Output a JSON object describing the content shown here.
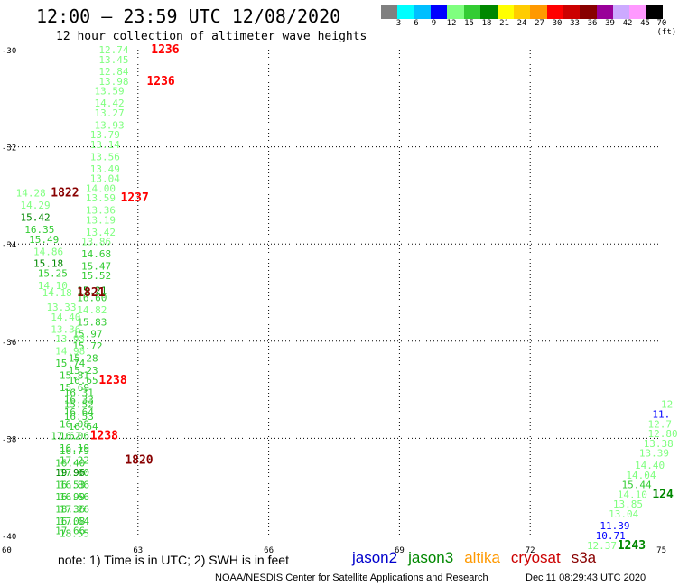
{
  "header": {
    "title": "12:00 – 23:59 UTC 12/08/2020",
    "subtitle": "12 hour collection of altimeter wave heights"
  },
  "colorbar": {
    "colors": [
      "#808080",
      "#00ffff",
      "#00bfff",
      "#0000ff",
      "#7fff7f",
      "#33cc33",
      "#008800",
      "#ffff00",
      "#ffcc00",
      "#ff9900",
      "#ff0000",
      "#cc0000",
      "#880000",
      "#990099",
      "#ccaaff",
      "#ff99ff",
      "#000000"
    ],
    "labels": [
      "3",
      "6",
      "9",
      "12",
      "15",
      "18",
      "21",
      "24",
      "27",
      "30",
      "33",
      "36",
      "39",
      "42",
      "45",
      "70 (ft)"
    ]
  },
  "axes": {
    "lat_labels": [
      "-30",
      "-32",
      "-34",
      "-36",
      "-38",
      "-40"
    ],
    "lat_values": [
      -30,
      -32,
      -34,
      -36,
      -38,
      -40
    ],
    "lon_labels": [
      "60",
      "63",
      "66",
      "69",
      "72",
      "75"
    ],
    "lon_values": [
      60,
      63,
      66,
      69,
      72,
      75
    ]
  },
  "tracks": [
    {
      "name": "track-1236",
      "items": [
        {
          "lon": 62.1,
          "lat": -30.0,
          "text": "12.74",
          "color": "#7fff7f"
        },
        {
          "lon": 63.3,
          "lat": -30.0,
          "text": "1236",
          "color": "#ff0000",
          "bold": true
        },
        {
          "lon": 62.1,
          "lat": -30.2,
          "text": "13.45",
          "color": "#7fff7f"
        },
        {
          "lon": 62.1,
          "lat": -30.45,
          "text": "12.84",
          "color": "#7fff7f"
        },
        {
          "lon": 62.1,
          "lat": -30.65,
          "text": "13.98",
          "color": "#7fff7f"
        },
        {
          "lon": 63.2,
          "lat": -30.65,
          "text": "1236",
          "color": "#ff0000",
          "bold": true
        },
        {
          "lon": 62.0,
          "lat": -30.85,
          "text": "13.59",
          "color": "#7fff7f"
        },
        {
          "lon": 62.0,
          "lat": -31.1,
          "text": "14.42",
          "color": "#7fff7f"
        },
        {
          "lon": 62.0,
          "lat": -31.3,
          "text": "13.27",
          "color": "#7fff7f"
        },
        {
          "lon": 62.0,
          "lat": -31.55,
          "text": "13.93",
          "color": "#7fff7f"
        },
        {
          "lon": 61.9,
          "lat": -31.75,
          "text": "13.79",
          "color": "#7fff7f"
        },
        {
          "lon": 61.9,
          "lat": -31.95,
          "text": "13.14",
          "color": "#7fff7f"
        },
        {
          "lon": 61.9,
          "lat": -32.2,
          "text": "13.56",
          "color": "#7fff7f"
        },
        {
          "lon": 61.9,
          "lat": -32.45,
          "text": "13.49",
          "color": "#7fff7f"
        },
        {
          "lon": 61.9,
          "lat": -32.65,
          "text": "13.04",
          "color": "#7fff7f"
        },
        {
          "lon": 61.8,
          "lat": -32.85,
          "text": "14.00",
          "color": "#7fff7f"
        }
      ]
    },
    {
      "name": "track-1237",
      "items": [
        {
          "lon": 61.8,
          "lat": -33.05,
          "text": "13.59",
          "color": "#7fff7f"
        },
        {
          "lon": 62.6,
          "lat": -33.05,
          "text": "1237",
          "color": "#ff0000",
          "bold": true
        },
        {
          "lon": 61.8,
          "lat": -33.3,
          "text": "13.36",
          "color": "#7fff7f"
        },
        {
          "lon": 61.8,
          "lat": -33.5,
          "text": "13.19",
          "color": "#7fff7f"
        },
        {
          "lon": 61.8,
          "lat": -33.75,
          "text": "13.42",
          "color": "#7fff7f"
        },
        {
          "lon": 61.7,
          "lat": -33.95,
          "text": "13.86",
          "color": "#7fff7f"
        },
        {
          "lon": 61.7,
          "lat": -34.2,
          "text": "14.68",
          "color": "#33cc33"
        },
        {
          "lon": 61.7,
          "lat": -34.45,
          "text": "15.47",
          "color": "#33cc33"
        },
        {
          "lon": 61.7,
          "lat": -34.65,
          "text": "15.52",
          "color": "#33cc33"
        },
        {
          "lon": 61.6,
          "lat": -34.95,
          "text": "15.21",
          "color": "#008800"
        },
        {
          "lon": 61.6,
          "lat": -35.1,
          "text": "16.60",
          "color": "#33cc33"
        },
        {
          "lon": 61.6,
          "lat": -35.35,
          "text": "14.82",
          "color": "#7fff7f"
        },
        {
          "lon": 61.6,
          "lat": -35.6,
          "text": "15.83",
          "color": "#33cc33"
        },
        {
          "lon": 61.5,
          "lat": -35.85,
          "text": "15.97",
          "color": "#33cc33"
        },
        {
          "lon": 61.5,
          "lat": -36.1,
          "text": "15.72",
          "color": "#33cc33"
        },
        {
          "lon": 61.4,
          "lat": -36.35,
          "text": "15.28",
          "color": "#33cc33"
        },
        {
          "lon": 61.4,
          "lat": -36.6,
          "text": "15.23",
          "color": "#33cc33"
        },
        {
          "lon": 61.4,
          "lat": -36.8,
          "text": "16.65",
          "color": "#33cc33"
        },
        {
          "lon": 62.1,
          "lat": -36.8,
          "text": "1238",
          "color": "#ff0000",
          "bold": true
        },
        {
          "lon": 61.3,
          "lat": -37.05,
          "text": "16.31",
          "color": "#33cc33"
        },
        {
          "lon": 61.3,
          "lat": -37.3,
          "text": "15.52",
          "color": "#33cc33"
        },
        {
          "lon": 61.3,
          "lat": -37.55,
          "text": "16.53",
          "color": "#33cc33"
        },
        {
          "lon": 61.4,
          "lat": -37.75,
          "text": "16.64",
          "color": "#33cc33"
        },
        {
          "lon": 61.0,
          "lat": -37.95,
          "text": "17.62",
          "color": "#33cc33"
        },
        {
          "lon": 61.9,
          "lat": -37.95,
          "text": "1238",
          "color": "#ff0000",
          "bold": true
        },
        {
          "lon": 61.2,
          "lat": -38.25,
          "text": "16.79",
          "color": "#33cc33"
        },
        {
          "lon": 61.1,
          "lat": -38.5,
          "text": "16.40",
          "color": "#33cc33"
        },
        {
          "lon": 61.2,
          "lat": -38.7,
          "text": "17.00",
          "color": "#33cc33"
        },
        {
          "lon": 61.2,
          "lat": -38.95,
          "text": "16.86",
          "color": "#33cc33"
        },
        {
          "lon": 61.2,
          "lat": -39.2,
          "text": "16.66",
          "color": "#33cc33"
        },
        {
          "lon": 61.2,
          "lat": -39.45,
          "text": "17.26",
          "color": "#33cc33"
        },
        {
          "lon": 61.2,
          "lat": -39.7,
          "text": "17.64",
          "color": "#33cc33"
        },
        {
          "lon": 61.2,
          "lat": -39.95,
          "text": "18.55",
          "color": "#33cc33"
        }
      ]
    },
    {
      "name": "track-1822",
      "items": [
        {
          "lon": 60.2,
          "lat": -32.95,
          "text": "14.28",
          "color": "#7fff7f"
        },
        {
          "lon": 61.0,
          "lat": -32.95,
          "text": "1822",
          "color": "#880000",
          "bold": true
        },
        {
          "lon": 60.3,
          "lat": -33.2,
          "text": "14.29",
          "color": "#7fff7f"
        },
        {
          "lon": 60.3,
          "lat": -33.45,
          "text": "15.42",
          "color": "#008800"
        },
        {
          "lon": 60.4,
          "lat": -33.7,
          "text": "16.35",
          "color": "#33cc33"
        },
        {
          "lon": 60.5,
          "lat": -33.9,
          "text": "15.49",
          "color": "#33cc33"
        },
        {
          "lon": 60.6,
          "lat": -34.15,
          "text": "14.86",
          "color": "#7fff7f"
        },
        {
          "lon": 60.6,
          "lat": -34.4,
          "text": "15.18",
          "color": "#008800"
        },
        {
          "lon": 60.7,
          "lat": -34.6,
          "text": "15.25",
          "color": "#33cc33"
        },
        {
          "lon": 60.7,
          "lat": -34.85,
          "text": "14.10",
          "color": "#7fff7f"
        },
        {
          "lon": 60.8,
          "lat": -35.0,
          "text": "14.18",
          "color": "#7fff7f"
        },
        {
          "lon": 61.6,
          "lat": -35.0,
          "text": "1821",
          "color": "#880000",
          "bold": true
        },
        {
          "lon": 60.9,
          "lat": -35.3,
          "text": "13.33",
          "color": "#7fff7f"
        },
        {
          "lon": 61.0,
          "lat": -35.5,
          "text": "14.40",
          "color": "#7fff7f"
        },
        {
          "lon": 61.0,
          "lat": -35.75,
          "text": "13.36",
          "color": "#7fff7f"
        },
        {
          "lon": 61.1,
          "lat": -35.95,
          "text": "13.93",
          "color": "#7fff7f"
        },
        {
          "lon": 61.1,
          "lat": -36.2,
          "text": "14.98",
          "color": "#7fff7f"
        },
        {
          "lon": 61.1,
          "lat": -36.45,
          "text": "15.74",
          "color": "#33cc33"
        },
        {
          "lon": 61.2,
          "lat": -36.7,
          "text": "15.81",
          "color": "#33cc33"
        },
        {
          "lon": 61.2,
          "lat": -36.95,
          "text": "15.69",
          "color": "#33cc33"
        },
        {
          "lon": 61.3,
          "lat": -37.2,
          "text": "16.33",
          "color": "#33cc33"
        },
        {
          "lon": 61.3,
          "lat": -37.45,
          "text": "16.64",
          "color": "#33cc33"
        },
        {
          "lon": 61.2,
          "lat": -37.7,
          "text": "16.08",
          "color": "#33cc33"
        },
        {
          "lon": 61.2,
          "lat": -37.95,
          "text": "16.06",
          "color": "#33cc33"
        },
        {
          "lon": 61.2,
          "lat": -38.2,
          "text": "16.19",
          "color": "#33cc33"
        },
        {
          "lon": 61.2,
          "lat": -38.45,
          "text": "17.22",
          "color": "#33cc33"
        },
        {
          "lon": 62.7,
          "lat": -38.45,
          "text": "1820",
          "color": "#880000",
          "bold": true
        },
        {
          "lon": 61.1,
          "lat": -38.7,
          "text": "19.96",
          "color": "#008800"
        },
        {
          "lon": 61.1,
          "lat": -38.95,
          "text": "16.53",
          "color": "#33cc33"
        },
        {
          "lon": 61.1,
          "lat": -39.2,
          "text": "16.99",
          "color": "#33cc33"
        },
        {
          "lon": 61.1,
          "lat": -39.45,
          "text": "18.36",
          "color": "#33cc33"
        },
        {
          "lon": 61.1,
          "lat": -39.7,
          "text": "16.08",
          "color": "#33cc33"
        },
        {
          "lon": 61.1,
          "lat": -39.9,
          "text": "17.66",
          "color": "#33cc33"
        }
      ]
    },
    {
      "name": "track-1243",
      "items": [
        {
          "lon": 75.0,
          "lat": -37.3,
          "text": "12",
          "color": "#7fff7f"
        },
        {
          "lon": 74.8,
          "lat": -37.5,
          "text": "11.",
          "color": "#0000ff"
        },
        {
          "lon": 74.7,
          "lat": -37.7,
          "text": "12.7",
          "color": "#7fff7f"
        },
        {
          "lon": 74.7,
          "lat": -37.9,
          "text": "12.80",
          "color": "#7fff7f"
        },
        {
          "lon": 74.6,
          "lat": -38.1,
          "text": "13.38",
          "color": "#7fff7f"
        },
        {
          "lon": 74.5,
          "lat": -38.3,
          "text": "13.39",
          "color": "#7fff7f"
        },
        {
          "lon": 74.4,
          "lat": -38.55,
          "text": "14.40",
          "color": "#7fff7f"
        },
        {
          "lon": 74.2,
          "lat": -38.75,
          "text": "14.04",
          "color": "#7fff7f"
        },
        {
          "lon": 74.1,
          "lat": -38.95,
          "text": "15.44",
          "color": "#33cc33"
        },
        {
          "lon": 74.0,
          "lat": -39.15,
          "text": "14.10",
          "color": "#7fff7f"
        },
        {
          "lon": 74.8,
          "lat": -39.15,
          "text": "124",
          "color": "#008800",
          "bold": true
        },
        {
          "lon": 73.9,
          "lat": -39.35,
          "text": "13.85",
          "color": "#7fff7f"
        },
        {
          "lon": 73.8,
          "lat": -39.55,
          "text": "13.04",
          "color": "#7fff7f"
        },
        {
          "lon": 73.6,
          "lat": -39.8,
          "text": "11.39",
          "color": "#0000ff"
        },
        {
          "lon": 73.5,
          "lat": -40.0,
          "text": "10.71",
          "color": "#0000ff"
        },
        {
          "lon": 73.3,
          "lat": -40.2,
          "text": "12.37",
          "color": "#7fff7f"
        },
        {
          "lon": 74.0,
          "lat": -40.2,
          "text": "1243",
          "color": "#008800",
          "bold": true
        }
      ]
    }
  ],
  "footer": {
    "note": "note:  1) Time is in UTC;  2) SWH is in feet",
    "legend": [
      {
        "label": "jason2",
        "color": "#0000cc"
      },
      {
        "label": "jason3",
        "color": "#008800"
      },
      {
        "label": "altika",
        "color": "#ff9900"
      },
      {
        "label": "cryosat",
        "color": "#cc0000"
      },
      {
        "label": "s3a",
        "color": "#880000"
      }
    ],
    "credit": "NOAA/NESDIS Center for Satellite Applications and Research",
    "timestamp": "Dec 11 08:29:43 UTC 2020"
  }
}
